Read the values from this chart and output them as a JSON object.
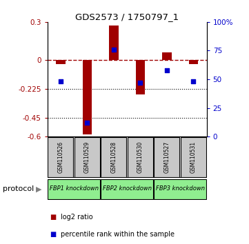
{
  "title": "GDS2573 / 1750797_1",
  "samples": [
    "GSM110526",
    "GSM110529",
    "GSM110528",
    "GSM110530",
    "GSM110527",
    "GSM110531"
  ],
  "log2_ratio": [
    -0.03,
    -0.58,
    0.27,
    -0.27,
    0.06,
    -0.03
  ],
  "percentile_rank": [
    48,
    12,
    76,
    47,
    58,
    48
  ],
  "ylim_left": [
    -0.6,
    0.3
  ],
  "ylim_right": [
    0,
    100
  ],
  "yticks_left": [
    0.3,
    0,
    -0.225,
    -0.45,
    -0.6
  ],
  "yticks_right": [
    100,
    75,
    50,
    25,
    0
  ],
  "hlines": [
    -0.225,
    -0.45
  ],
  "dashed_line": 0,
  "group_positions": [
    [
      0,
      1,
      "FBP1 knockdown"
    ],
    [
      2,
      3,
      "FBP2 knockdown"
    ],
    [
      4,
      5,
      "FBP3 knockdown"
    ]
  ],
  "bar_color": "#a00000",
  "scatter_color": "#0000cc",
  "background_color": "#ffffff",
  "sample_box_color": "#c8c8c8",
  "green_color": "#90ee90",
  "legend_items": [
    {
      "label": "log2 ratio",
      "color": "#a00000"
    },
    {
      "label": "percentile rank within the sample",
      "color": "#0000cc"
    }
  ],
  "protocol_label": "protocol"
}
